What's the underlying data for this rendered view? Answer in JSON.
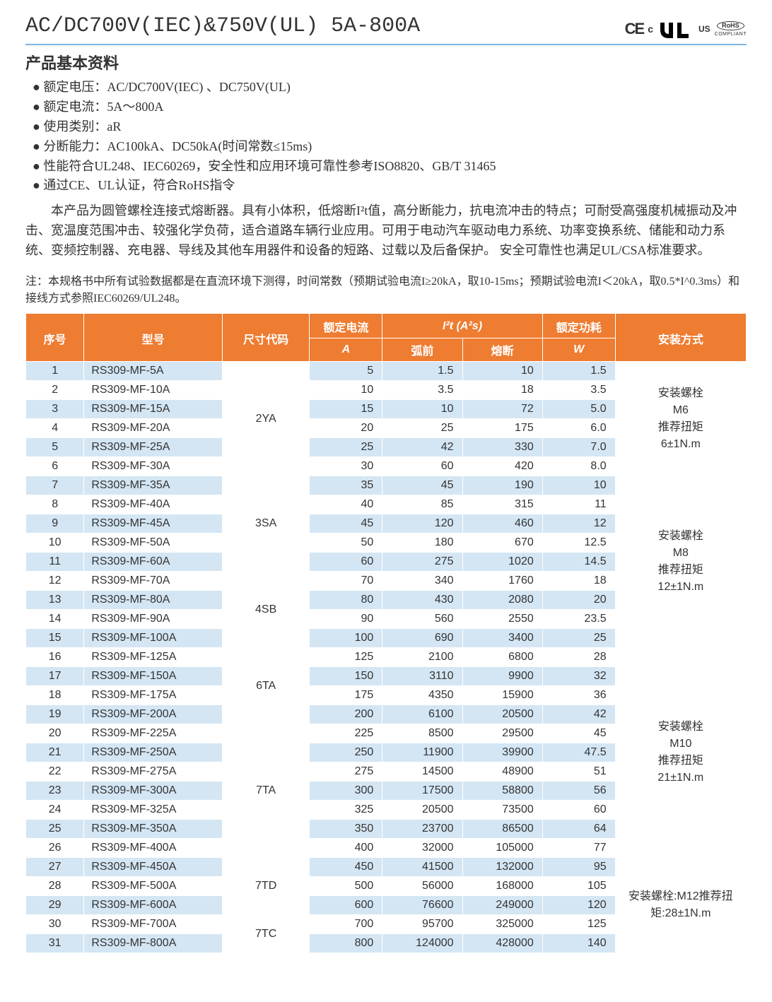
{
  "header": {
    "title": "AC/DC700V(IEC)&750V(UL) 5A-800A",
    "certs": {
      "ce": "CE",
      "c": "c",
      "us": "US",
      "rohs_top": "RoHS",
      "rohs_bottom": "COMPLIANT"
    }
  },
  "section_title": "产品基本资料",
  "bullets": [
    "额定电压：AC/DC700V(IEC) 、DC750V(UL)",
    "额定电流：5A～800A",
    "使用类别：aR",
    "分断能力：AC100kA、DC50kA(时间常数≤15ms)",
    "性能符合UL248、IEC60269，安全性和应用环境可靠性参考ISO8820、GB/T 31465",
    "通过CE、UL认证，符合RoHS指令"
  ],
  "paragraph": "本产品为圆管螺栓连接式熔断器。具有小体积，低熔断I²t值，高分断能力，抗电流冲击的特点；可耐受高强度机械振动及冲击、宽温度范围冲击、较强化学负荷，适合道路车辆行业应用。可用于电动汽车驱动电力系统、功率变换系统、储能和动力系统、变频控制器、充电器、导线及其他车用器件和设备的短路、过载以及后备保护。 安全可靠性也满足UL/CSA标准要求。",
  "note": "注：本规格书中所有试验数据都是在直流环境下测得，时间常数（预期试验电流I≥20kA，取10-15ms；预期试验电流I＜20kA，取0.5*I^0.3ms）和接线方式参照IEC60269/UL248。",
  "table": {
    "cols": {
      "w_seq": 80,
      "w_model": 190,
      "w_size": 120,
      "w_cur": 100,
      "w_i2t1": 110,
      "w_i2t2": 110,
      "w_pw": 100,
      "w_inst": 180
    },
    "headers": {
      "seq": "序号",
      "model": "型号",
      "size": "尺寸代码",
      "current_top": "额定电流",
      "current_sub": "A",
      "i2t_top": "I²t (A²s)",
      "i2t_pre": "弧前",
      "i2t_clr": "熔断",
      "power_top": "额定功耗",
      "power_sub": "W",
      "install": "安装方式"
    },
    "size_groups": [
      {
        "code": "2YA",
        "start": 1,
        "span": 6,
        "install": "安装螺栓\nM6\n推荐扭矩\n6±1N.m",
        "install_span": 6
      },
      {
        "code": "3SA",
        "start": 7,
        "span": 5,
        "install": "安装螺栓\nM8\n推荐扭矩\n12±1N.m",
        "install_span": 9
      },
      {
        "code": "4SB",
        "start": 12,
        "span": 4
      },
      {
        "code": "6TA",
        "start": 16,
        "span": 4,
        "install": "安装螺栓\nM10\n推荐扭矩\n21±1N.m",
        "install_span": 11
      },
      {
        "code": "7TA",
        "start": 20,
        "span": 7
      },
      {
        "code": "7TD",
        "start": 27,
        "span": 3,
        "install": "安装螺栓:M12推荐扭矩:28±1N.m",
        "install_span": 5
      },
      {
        "code": "7TC",
        "start": 30,
        "span": 2
      }
    ],
    "rows": [
      {
        "seq": 1,
        "model": "RS309-MF-5A",
        "current": 5,
        "pre": "1.5",
        "clr": 10,
        "pw": "1.5"
      },
      {
        "seq": 2,
        "model": "RS309-MF-10A",
        "current": 10,
        "pre": "3.5",
        "clr": 18,
        "pw": "3.5"
      },
      {
        "seq": 3,
        "model": "RS309-MF-15A",
        "current": 15,
        "pre": "10",
        "clr": 72,
        "pw": "5.0"
      },
      {
        "seq": 4,
        "model": "RS309-MF-20A",
        "current": 20,
        "pre": "25",
        "clr": 175,
        "pw": "6.0"
      },
      {
        "seq": 5,
        "model": "RS309-MF-25A",
        "current": 25,
        "pre": "42",
        "clr": 330,
        "pw": "7.0"
      },
      {
        "seq": 6,
        "model": "RS309-MF-30A",
        "current": 30,
        "pre": "60",
        "clr": 420,
        "pw": "8.0"
      },
      {
        "seq": 7,
        "model": "RS309-MF-35A",
        "current": 35,
        "pre": "45",
        "clr": 190,
        "pw": "10"
      },
      {
        "seq": 8,
        "model": "RS309-MF-40A",
        "current": 40,
        "pre": "85",
        "clr": 315,
        "pw": "11"
      },
      {
        "seq": 9,
        "model": "RS309-MF-45A",
        "current": 45,
        "pre": "120",
        "clr": 460,
        "pw": "12"
      },
      {
        "seq": 10,
        "model": "RS309-MF-50A",
        "current": 50,
        "pre": "180",
        "clr": 670,
        "pw": "12.5"
      },
      {
        "seq": 11,
        "model": "RS309-MF-60A",
        "current": 60,
        "pre": "275",
        "clr": 1020,
        "pw": "14.5"
      },
      {
        "seq": 12,
        "model": "RS309-MF-70A",
        "current": 70,
        "pre": "340",
        "clr": 1760,
        "pw": "18"
      },
      {
        "seq": 13,
        "model": "RS309-MF-80A",
        "current": 80,
        "pre": "430",
        "clr": 2080,
        "pw": "20"
      },
      {
        "seq": 14,
        "model": "RS309-MF-90A",
        "current": 90,
        "pre": "560",
        "clr": 2550,
        "pw": "23.5"
      },
      {
        "seq": 15,
        "model": "RS309-MF-100A",
        "current": 100,
        "pre": "690",
        "clr": 3400,
        "pw": "25"
      },
      {
        "seq": 16,
        "model": "RS309-MF-125A",
        "current": 125,
        "pre": "2100",
        "clr": 6800,
        "pw": "28"
      },
      {
        "seq": 17,
        "model": "RS309-MF-150A",
        "current": 150,
        "pre": "3110",
        "clr": 9900,
        "pw": "32"
      },
      {
        "seq": 18,
        "model": "RS309-MF-175A",
        "current": 175,
        "pre": "4350",
        "clr": 15900,
        "pw": "36"
      },
      {
        "seq": 19,
        "model": "RS309-MF-200A",
        "current": 200,
        "pre": "6100",
        "clr": 20500,
        "pw": "42"
      },
      {
        "seq": 20,
        "model": "RS309-MF-225A",
        "current": 225,
        "pre": "8500",
        "clr": 29500,
        "pw": "45"
      },
      {
        "seq": 21,
        "model": "RS309-MF-250A",
        "current": 250,
        "pre": "11900",
        "clr": 39900,
        "pw": "47.5"
      },
      {
        "seq": 22,
        "model": "RS309-MF-275A",
        "current": 275,
        "pre": "14500",
        "clr": 48900,
        "pw": "51"
      },
      {
        "seq": 23,
        "model": "RS309-MF-300A",
        "current": 300,
        "pre": "17500",
        "clr": 58800,
        "pw": "56"
      },
      {
        "seq": 24,
        "model": "RS309-MF-325A",
        "current": 325,
        "pre": "20500",
        "clr": 73500,
        "pw": "60"
      },
      {
        "seq": 25,
        "model": "RS309-MF-350A",
        "current": 350,
        "pre": "23700",
        "clr": 86500,
        "pw": "64"
      },
      {
        "seq": 26,
        "model": "RS309-MF-400A",
        "current": 400,
        "pre": "32000",
        "clr": 105000,
        "pw": "77"
      },
      {
        "seq": 27,
        "model": "RS309-MF-450A",
        "current": 450,
        "pre": "41500",
        "clr": 132000,
        "pw": "95"
      },
      {
        "seq": 28,
        "model": "RS309-MF-500A",
        "current": 500,
        "pre": "56000",
        "clr": 168000,
        "pw": "105"
      },
      {
        "seq": 29,
        "model": "RS309-MF-600A",
        "current": 600,
        "pre": "76600",
        "clr": 249000,
        "pw": "120"
      },
      {
        "seq": 30,
        "model": "RS309-MF-700A",
        "current": 700,
        "pre": "95700",
        "clr": 325000,
        "pw": "125"
      },
      {
        "seq": 31,
        "model": "RS309-MF-800A",
        "current": 800,
        "pre": "124000",
        "clr": 428000,
        "pw": "140"
      }
    ]
  },
  "style": {
    "header_bg": "#ee7c31",
    "header_fg": "#ffffff",
    "row_odd_bg": "#d4e6f4",
    "row_even_bg": "#ffffff",
    "border_color": "#ffffff",
    "hr_color": "#7fb3e0"
  }
}
